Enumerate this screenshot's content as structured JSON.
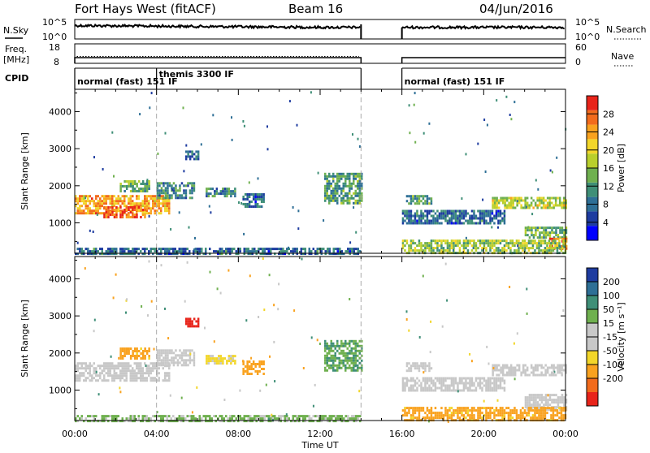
{
  "header": {
    "station": "Fort Hays West (fitACF)",
    "beam": "Beam 16",
    "date": "04/Jun/2016"
  },
  "top_panels": {
    "nsky_label": "N.Sky",
    "nsky_top": "10^5",
    "nsky_bottom": "10^0",
    "nsearch_label": "N.Search",
    "nsearch_top": "10^5",
    "nsearch_bottom": "10^0",
    "freq_label_1": "Freq.",
    "freq_label_2": "[MHz]",
    "freq_top": "18",
    "freq_bottom": "8",
    "nave_label": "Nave",
    "nave_top": "60",
    "nave_bottom": "0",
    "cpid_label": "CPID"
  },
  "cpid_segments": [
    {
      "label": "normal (fast) 151 IF",
      "start_hour": 0,
      "end_hour": 4
    },
    {
      "label": "themis 3300 IF",
      "start_hour": 4,
      "end_hour": 14
    },
    {
      "label": "normal (fast) 151 IF",
      "start_hour": 16,
      "end_hour": 24
    }
  ],
  "chart_data": [
    {
      "type": "heatmap",
      "panel": "power",
      "ylabel": "Slant Range [km]",
      "xlabel": "",
      "x_ticks": [
        "00:00",
        "04:00",
        "08:00",
        "12:00",
        "16:00",
        "20:00",
        "00:00"
      ],
      "x_range_hours": [
        0,
        24
      ],
      "y_ticks": [
        1000,
        2000,
        3000,
        4000
      ],
      "y_range": [
        180,
        4600
      ],
      "data_gap_hours": [
        14,
        16
      ],
      "colorbar_label": "Power [dB]",
      "colorbar_ticks": [
        4,
        8,
        12,
        16,
        20,
        24,
        28
      ],
      "colorbar_range": [
        0,
        32
      ],
      "colormap": [
        "#0000ff",
        "#1e3ca0",
        "#2e6f96",
        "#3f8f77",
        "#6fb04f",
        "#b9cf2c",
        "#f2d62a",
        "#f9a21f",
        "#f26b1c",
        "#e8241a"
      ],
      "echo_regions": [
        {
          "t0": 0.0,
          "t1": 4.6,
          "r0": 1250,
          "r1": 1750,
          "level": 24
        },
        {
          "t0": 1.4,
          "t1": 3.4,
          "r0": 1150,
          "r1": 1450,
          "level": 28
        },
        {
          "t0": 2.2,
          "t1": 3.6,
          "r0": 1850,
          "r1": 2150,
          "level": 14
        },
        {
          "t0": 4.0,
          "t1": 5.8,
          "r0": 1700,
          "r1": 2100,
          "level": 10
        },
        {
          "t0": 6.4,
          "t1": 7.8,
          "r0": 1750,
          "r1": 1950,
          "level": 10
        },
        {
          "t0": 8.2,
          "t1": 9.2,
          "r0": 1450,
          "r1": 1800,
          "level": 8
        },
        {
          "t0": 12.2,
          "t1": 14.0,
          "r0": 1550,
          "r1": 2350,
          "level": 12
        },
        {
          "t0": 16.2,
          "t1": 17.4,
          "r0": 1500,
          "r1": 1750,
          "level": 12
        },
        {
          "t0": 16.0,
          "t1": 21.0,
          "r0": 1000,
          "r1": 1350,
          "level": 8
        },
        {
          "t0": 20.4,
          "t1": 24.0,
          "r0": 1400,
          "r1": 1700,
          "level": 18
        },
        {
          "t0": 22.0,
          "t1": 24.0,
          "r0": 600,
          "r1": 900,
          "level": 14
        },
        {
          "t0": 23.2,
          "t1": 24.0,
          "r0": 300,
          "r1": 600,
          "level": 26
        },
        {
          "t0": 5.4,
          "t1": 6.0,
          "r0": 2700,
          "r1": 2950,
          "level": 8
        },
        {
          "t0": 0.0,
          "t1": 14.0,
          "r0": 190,
          "r1": 330,
          "level": 8
        },
        {
          "t0": 16.0,
          "t1": 24.0,
          "r0": 190,
          "r1": 550,
          "level": 16
        }
      ]
    },
    {
      "type": "heatmap",
      "panel": "velocity",
      "ylabel": "Slant Range [km]",
      "xlabel": "Time UT",
      "x_ticks": [
        "00:00",
        "04:00",
        "08:00",
        "12:00",
        "16:00",
        "20:00",
        "00:00"
      ],
      "x_range_hours": [
        0,
        24
      ],
      "y_ticks": [
        1000,
        2000,
        3000,
        4000
      ],
      "y_range": [
        180,
        4600
      ],
      "data_gap_hours": [
        14,
        16
      ],
      "colorbar_label": "Velocity [m s⁻¹]",
      "colorbar_ticks": [
        200,
        100,
        50,
        15,
        -15,
        -50,
        -100,
        -200
      ],
      "colormap": [
        "#e8241a",
        "#f26b1c",
        "#f9a21f",
        "#f2d62a",
        "#c8c8c8",
        "#c8c8c8",
        "#6fb04f",
        "#3f8f77",
        "#2e6f96",
        "#1e3ca0"
      ],
      "echo_regions": [
        {
          "t0": 0.0,
          "t1": 4.6,
          "r0": 1250,
          "r1": 1750,
          "level": 0
        },
        {
          "t0": 2.2,
          "t1": 3.6,
          "r0": 1850,
          "r1": 2150,
          "level": -40
        },
        {
          "t0": 4.0,
          "t1": 5.8,
          "r0": 1700,
          "r1": 2100,
          "level": 0
        },
        {
          "t0": 6.4,
          "t1": 7.8,
          "r0": 1750,
          "r1": 1950,
          "level": -20
        },
        {
          "t0": 8.2,
          "t1": 9.2,
          "r0": 1450,
          "r1": 1800,
          "level": -60
        },
        {
          "t0": 12.2,
          "t1": 14.0,
          "r0": 1550,
          "r1": 2350,
          "level": 30
        },
        {
          "t0": 16.2,
          "t1": 17.4,
          "r0": 1500,
          "r1": 1750,
          "level": 0
        },
        {
          "t0": 16.0,
          "t1": 21.0,
          "r0": 1000,
          "r1": 1350,
          "level": 0
        },
        {
          "t0": 20.4,
          "t1": 24.0,
          "r0": 1400,
          "r1": 1700,
          "level": 0
        },
        {
          "t0": 22.0,
          "t1": 24.0,
          "r0": 500,
          "r1": 900,
          "level": 0
        },
        {
          "t0": 5.4,
          "t1": 6.0,
          "r0": 2700,
          "r1": 2950,
          "level": -180
        },
        {
          "t0": 0.0,
          "t1": 14.0,
          "r0": 190,
          "r1": 330,
          "level": 20
        },
        {
          "t0": 16.0,
          "t1": 24.0,
          "r0": 190,
          "r1": 550,
          "level": -40
        }
      ]
    }
  ]
}
